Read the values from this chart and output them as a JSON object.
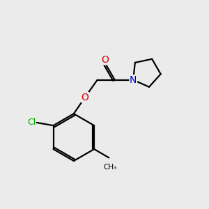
{
  "bg_color": "#ebebeb",
  "bond_color": "#000000",
  "line_width": 1.6,
  "atom_colors": {
    "O": "#dd0000",
    "N": "#0000cc",
    "Cl": "#00aa00",
    "C": "#000000"
  }
}
